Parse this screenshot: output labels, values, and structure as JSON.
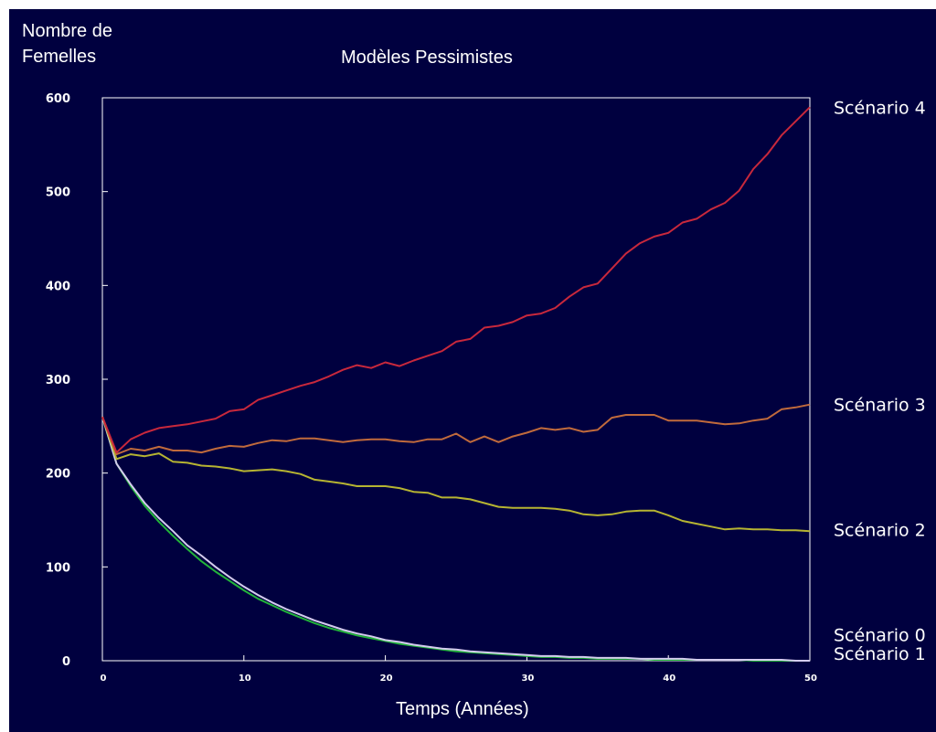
{
  "chart_data": {
    "type": "line",
    "title": "Modèles Pessimistes",
    "ylabel": [
      "Nombre de",
      "Femelles"
    ],
    "xlabel": "Temps (Années)",
    "xlim": [
      0,
      50
    ],
    "ylim": [
      0,
      600
    ],
    "xticks": [
      0,
      10,
      20,
      30,
      40,
      50
    ],
    "yticks": [
      0,
      100,
      200,
      300,
      400,
      500,
      600
    ],
    "grid": false,
    "legend_placement": "right edge, labels at line ends",
    "x": [
      0,
      1,
      2,
      3,
      4,
      5,
      6,
      7,
      8,
      9,
      10,
      11,
      12,
      13,
      14,
      15,
      16,
      17,
      18,
      19,
      20,
      21,
      22,
      23,
      24,
      25,
      26,
      27,
      28,
      29,
      30,
      31,
      32,
      33,
      34,
      35,
      36,
      37,
      38,
      39,
      40,
      41,
      42,
      43,
      44,
      45,
      46,
      47,
      48,
      49,
      50
    ],
    "series": [
      {
        "name": "Scénario 4",
        "color": "#c8283c",
        "values": [
          260,
          222,
          236,
          243,
          248,
          250,
          252,
          255,
          258,
          266,
          268,
          278,
          283,
          288,
          293,
          297,
          303,
          310,
          315,
          312,
          318,
          314,
          320,
          325,
          330,
          340,
          343,
          355,
          357,
          361,
          368,
          370,
          376,
          388,
          398,
          402,
          418,
          434,
          445,
          452,
          456,
          467,
          471,
          481,
          488,
          501,
          524,
          540,
          560,
          575,
          590
        ]
      },
      {
        "name": "Scénario 3",
        "color": "#c06a3c",
        "values": [
          260,
          220,
          226,
          224,
          228,
          224,
          224,
          222,
          226,
          229,
          228,
          232,
          235,
          234,
          237,
          237,
          235,
          233,
          235,
          236,
          236,
          234,
          233,
          236,
          236,
          242,
          233,
          239,
          233,
          239,
          243,
          248,
          246,
          248,
          244,
          246,
          259,
          262,
          262,
          262,
          256,
          256,
          256,
          254,
          252,
          253,
          256,
          258,
          268,
          270,
          273
        ]
      },
      {
        "name": "Scénario 2",
        "color": "#b6b432",
        "values": [
          260,
          215,
          220,
          218,
          221,
          212,
          211,
          208,
          207,
          205,
          202,
          203,
          204,
          202,
          199,
          193,
          191,
          189,
          186,
          186,
          186,
          184,
          180,
          179,
          174,
          174,
          172,
          168,
          164,
          163,
          163,
          163,
          162,
          160,
          156,
          155,
          156,
          159,
          160,
          160,
          155,
          149,
          146,
          143,
          140,
          141,
          140,
          140,
          139,
          139,
          138
        ]
      },
      {
        "name": "Scénario 0",
        "color": "#d4ccee",
        "values": [
          260,
          210,
          188,
          168,
          152,
          138,
          123,
          112,
          100,
          89,
          79,
          70,
          62,
          55,
          49,
          43,
          38,
          33,
          29,
          26,
          22,
          20,
          17,
          15,
          13,
          12,
          10,
          9,
          8,
          7,
          6,
          5,
          5,
          4,
          4,
          3,
          3,
          3,
          2,
          2,
          2,
          2,
          1,
          1,
          1,
          1,
          1,
          1,
          1,
          0,
          0
        ]
      },
      {
        "name": "Scénario 1",
        "color": "#22b43a",
        "values": [
          260,
          210,
          186,
          165,
          148,
          133,
          119,
          106,
          95,
          85,
          75,
          66,
          59,
          52,
          46,
          40,
          35,
          31,
          27,
          24,
          21,
          18,
          16,
          14,
          12,
          10,
          9,
          8,
          7,
          6,
          5,
          4,
          4,
          3,
          3,
          2,
          2,
          2,
          2,
          1,
          1,
          1,
          1,
          1,
          1,
          1,
          0,
          0,
          0,
          0,
          0
        ]
      }
    ],
    "series_label_anchor_y": {
      "Scénario 4": 590,
      "Scénario 3": 273,
      "Scénario 2": 140,
      "Scénario 0": 28,
      "Scénario 1": 8
    }
  }
}
